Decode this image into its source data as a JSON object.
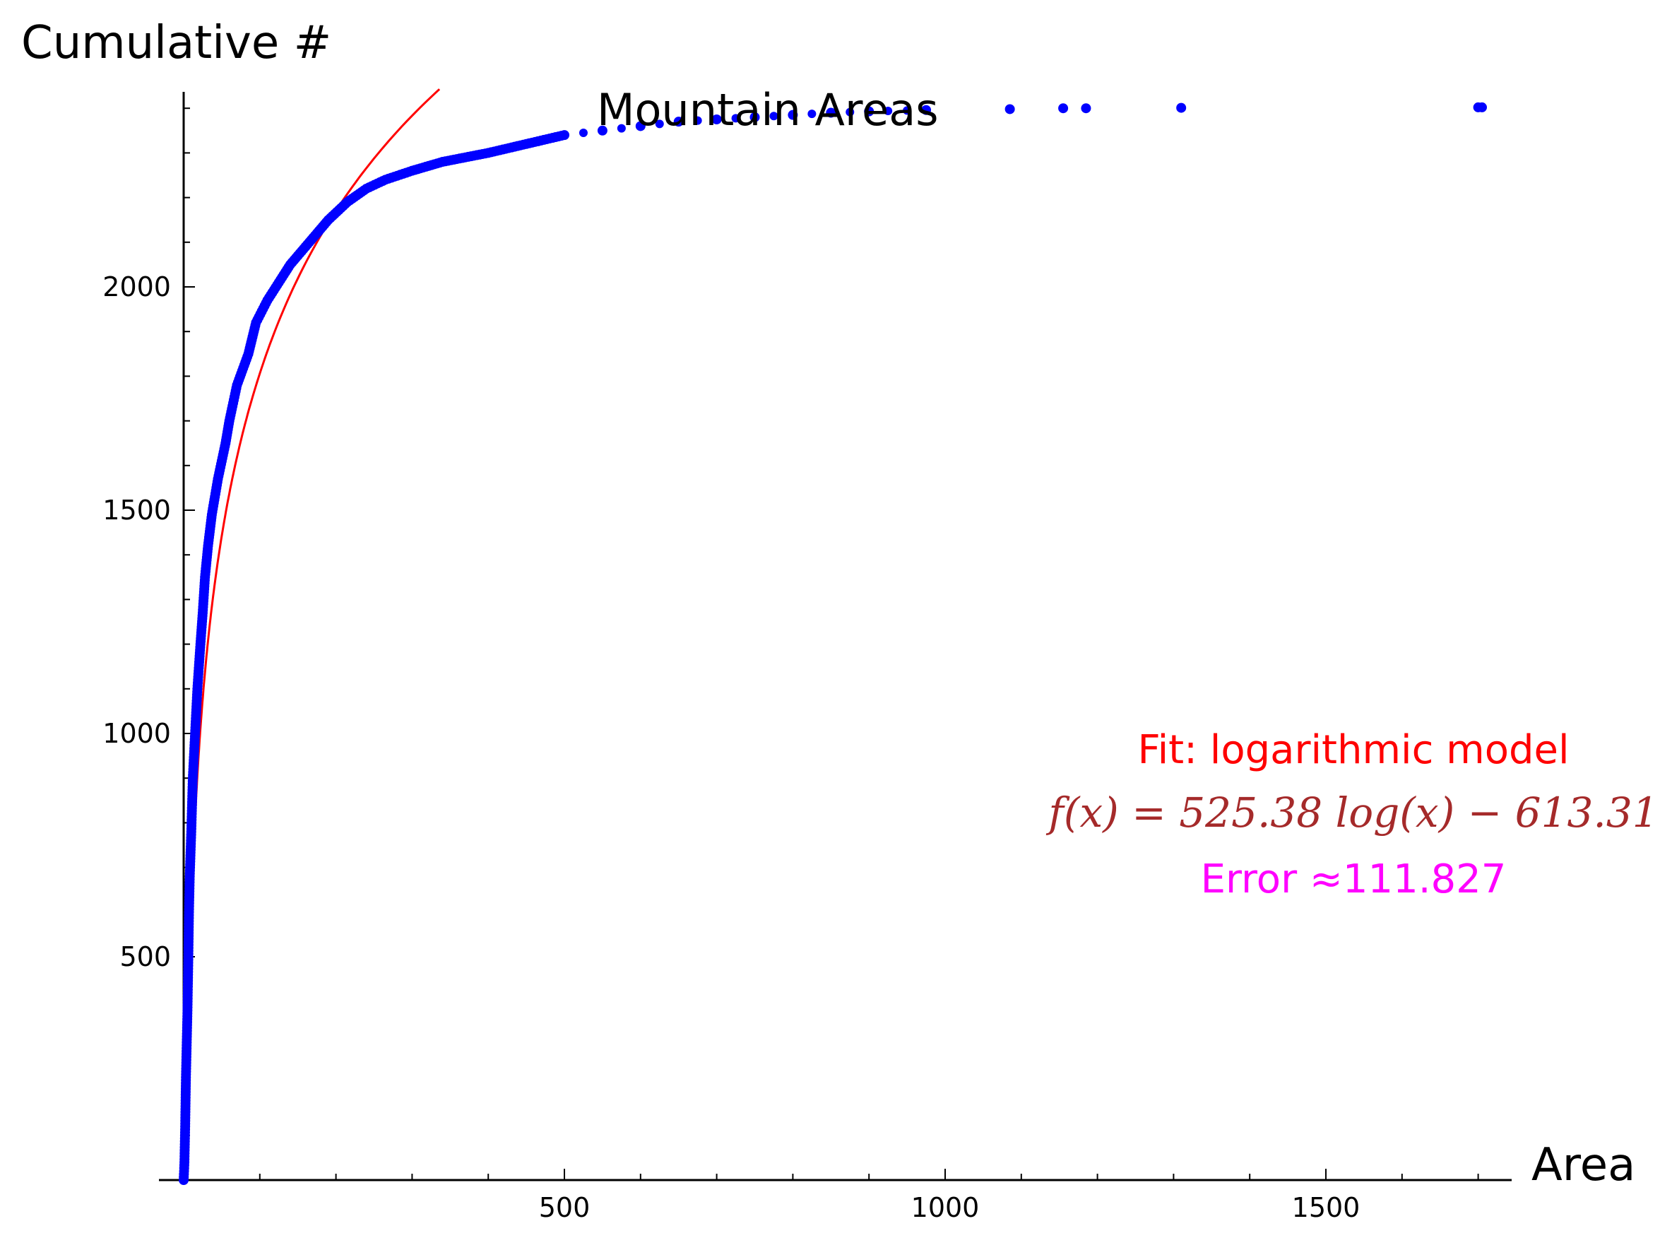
{
  "chart_data": {
    "type": "scatter",
    "title": "Mountain Areas",
    "xlabel": "Area",
    "ylabel": "Cumulative #",
    "xlim": [
      -35,
      1740
    ],
    "ylim": [
      0,
      2440
    ],
    "xticks": [
      500,
      1000,
      1500
    ],
    "yticks": [
      500,
      1000,
      1500,
      2000
    ],
    "colors": {
      "points": "#0000ff",
      "fit": "#ff0000",
      "formula": "#a52a2a",
      "error": "#ff00ff"
    },
    "series": [
      {
        "name": "",
        "kind": "points",
        "points": [
          [
            0,
            0
          ],
          [
            1,
            40
          ],
          [
            2,
            120
          ],
          [
            3,
            230
          ],
          [
            5,
            380
          ],
          [
            6,
            480
          ],
          [
            7,
            600
          ],
          [
            8,
            680
          ],
          [
            10,
            780
          ],
          [
            12,
            900
          ],
          [
            15,
            1000
          ],
          [
            18,
            1100
          ],
          [
            22,
            1200
          ],
          [
            25,
            1270
          ],
          [
            28,
            1350
          ],
          [
            32,
            1420
          ],
          [
            37,
            1490
          ],
          [
            45,
            1570
          ],
          [
            55,
            1650
          ],
          [
            60,
            1700
          ],
          [
            70,
            1780
          ],
          [
            85,
            1850
          ],
          [
            95,
            1920
          ],
          [
            110,
            1970
          ],
          [
            125,
            2010
          ],
          [
            140,
            2050
          ],
          [
            165,
            2100
          ],
          [
            190,
            2150
          ],
          [
            215,
            2190
          ],
          [
            240,
            2220
          ],
          [
            265,
            2240
          ],
          [
            300,
            2260
          ],
          [
            340,
            2280
          ],
          [
            400,
            2300
          ],
          [
            450,
            2320
          ],
          [
            500,
            2340
          ],
          [
            550,
            2350
          ],
          [
            600,
            2360
          ],
          [
            650,
            2370
          ],
          [
            700,
            2375
          ],
          [
            750,
            2380
          ],
          [
            800,
            2385
          ],
          [
            850,
            2390
          ],
          [
            900,
            2393
          ],
          [
            975,
            2396
          ],
          [
            1085,
            2398
          ],
          [
            1155,
            2400
          ],
          [
            1185,
            2400
          ],
          [
            1310,
            2401
          ],
          [
            1700,
            2402
          ],
          [
            1705,
            2402
          ]
        ]
      },
      {
        "name": "",
        "kind": "fit",
        "model": "logarithmic",
        "a": 525.38,
        "b": -613.31
      }
    ],
    "annotations": {
      "fit_title": "Fit: logarithmic model",
      "formula": "f(x) = 525.38 log(x) − 613.31",
      "error": "Error ≈111.827"
    }
  }
}
